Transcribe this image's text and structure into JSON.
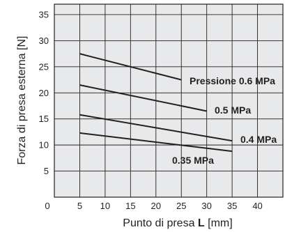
{
  "chart_data": {
    "type": "line",
    "title": "",
    "xlabel_prefix": "Punto di presa ",
    "xlabel_bold": "L",
    "xlabel_suffix": " [mm]",
    "ylabel": "Forza di presa esterna [N]",
    "xlim": [
      0,
      45
    ],
    "ylim": [
      0,
      37
    ],
    "xticks": [
      "0",
      "5",
      "10",
      "15",
      "20",
      "25",
      "30",
      "35",
      "40"
    ],
    "yticks": [
      "5",
      "10",
      "15",
      "20",
      "25",
      "30",
      "35"
    ],
    "grid": true,
    "series": [
      {
        "name": "Pressione 0.6 MPa",
        "x": [
          5,
          25
        ],
        "y": [
          27.5,
          22.5
        ]
      },
      {
        "name": "0.5 MPa",
        "x": [
          5,
          30
        ],
        "y": [
          21.5,
          16.5
        ]
      },
      {
        "name": "0.4 MPa",
        "x": [
          5,
          35
        ],
        "y": [
          15.8,
          10.8
        ]
      },
      {
        "name": "0.35 MPa",
        "x": [
          5,
          35
        ],
        "y": [
          12.3,
          8.8
        ]
      }
    ]
  }
}
